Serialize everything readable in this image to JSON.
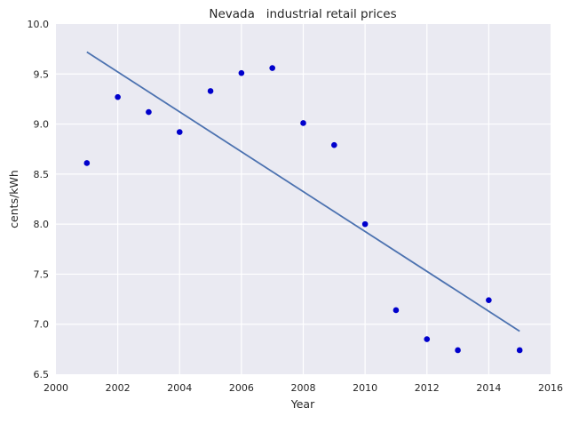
{
  "chart_data": {
    "type": "scatter",
    "title": "Nevada   industrial retail prices",
    "xlabel": "Year",
    "ylabel": "cents/kWh",
    "xlim": [
      2000,
      2016
    ],
    "ylim": [
      6.5,
      10.0
    ],
    "xticks": [
      "2000",
      "2002",
      "2004",
      "2006",
      "2008",
      "2010",
      "2012",
      "2014",
      "2016"
    ],
    "yticks": [
      "6.5",
      "7.0",
      "7.5",
      "8.0",
      "8.5",
      "9.0",
      "9.5",
      "10.0"
    ],
    "grid": true,
    "series": [
      {
        "kind": "scatter",
        "color": "#0000cc",
        "x": [
          2001,
          2002,
          2003,
          2004,
          2005,
          2006,
          2007,
          2008,
          2009,
          2010,
          2011,
          2012,
          2013,
          2014,
          2015
        ],
        "y": [
          8.61,
          9.27,
          9.12,
          8.92,
          9.33,
          9.51,
          9.56,
          9.01,
          8.79,
          8.0,
          7.14,
          6.85,
          6.74,
          7.24,
          6.74
        ]
      },
      {
        "kind": "line",
        "color": "#4c72b0",
        "x": [
          2001,
          2015
        ],
        "y": [
          9.72,
          6.93
        ]
      }
    ],
    "colors": {
      "plot_background": "#eaeaf2",
      "grid": "#ffffff"
    }
  }
}
